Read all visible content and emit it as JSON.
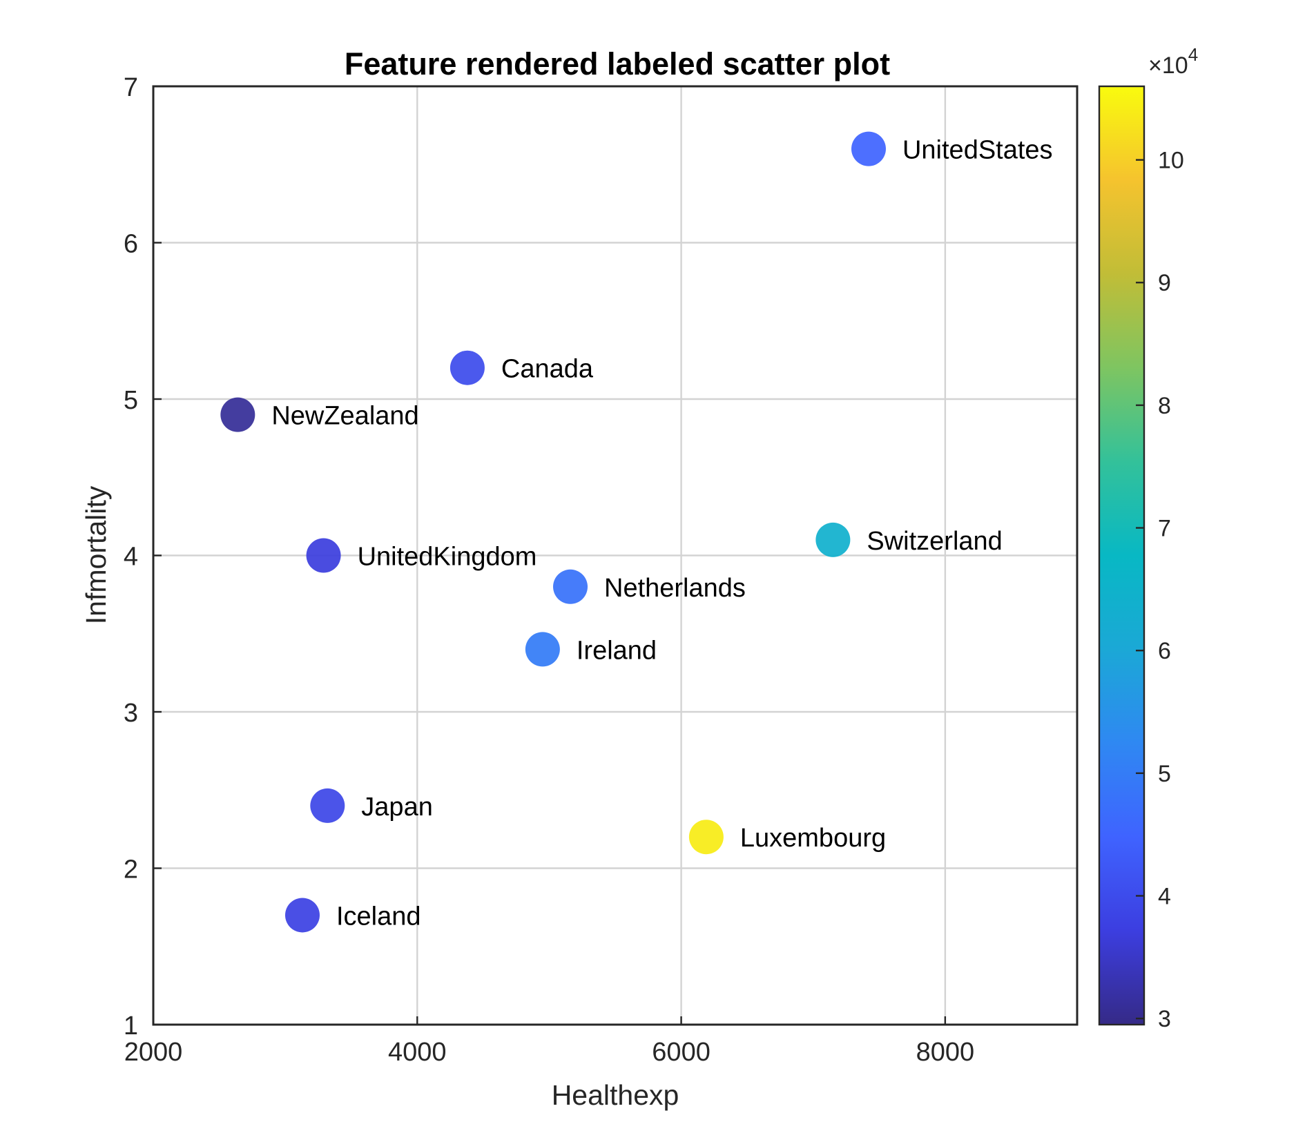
{
  "chart_data": {
    "type": "scatter",
    "title": "Feature rendered labeled scatter plot",
    "xlabel": "Healthexp",
    "ylabel": "Infmortality",
    "xlim": [
      2000,
      9000
    ],
    "ylim": [
      1,
      7
    ],
    "xticks": [
      2000,
      4000,
      6000,
      8000
    ],
    "xtick_labels": [
      "2000",
      "4000",
      "6000",
      "8000"
    ],
    "yticks": [
      1,
      2,
      3,
      4,
      5,
      6,
      7
    ],
    "ytick_labels": [
      "1",
      "2",
      "3",
      "4",
      "5",
      "6",
      "7"
    ],
    "grid": true,
    "colorbar": {
      "colormap": "parula",
      "exponent_label": "×10",
      "exponent_power": "4",
      "range": [
        29500,
        106000
      ],
      "ticks": [
        30000,
        40000,
        50000,
        60000,
        70000,
        80000,
        90000,
        100000
      ],
      "tick_labels": [
        "3",
        "4",
        "5",
        "6",
        "7",
        "8",
        "9",
        "10"
      ]
    },
    "points": [
      {
        "label": "UnitedStates",
        "x": 7420,
        "y": 6.6,
        "color_value": 45000
      },
      {
        "label": "Canada",
        "x": 4380,
        "y": 5.2,
        "color_value": 40000
      },
      {
        "label": "NewZealand",
        "x": 2640,
        "y": 4.9,
        "color_value": 31000
      },
      {
        "label": "Switzerland",
        "x": 7150,
        "y": 4.1,
        "color_value": 64000
      },
      {
        "label": "UnitedKingdom",
        "x": 3290,
        "y": 4.0,
        "color_value": 37000
      },
      {
        "label": "Netherlands",
        "x": 5160,
        "y": 3.8,
        "color_value": 48000
      },
      {
        "label": "Ireland",
        "x": 4950,
        "y": 3.4,
        "color_value": 50000
      },
      {
        "label": "Japan",
        "x": 3320,
        "y": 2.4,
        "color_value": 39000
      },
      {
        "label": "Luxembourg",
        "x": 6190,
        "y": 2.2,
        "color_value": 104000
      },
      {
        "label": "Iceland",
        "x": 3130,
        "y": 1.7,
        "color_value": 38000
      }
    ]
  }
}
